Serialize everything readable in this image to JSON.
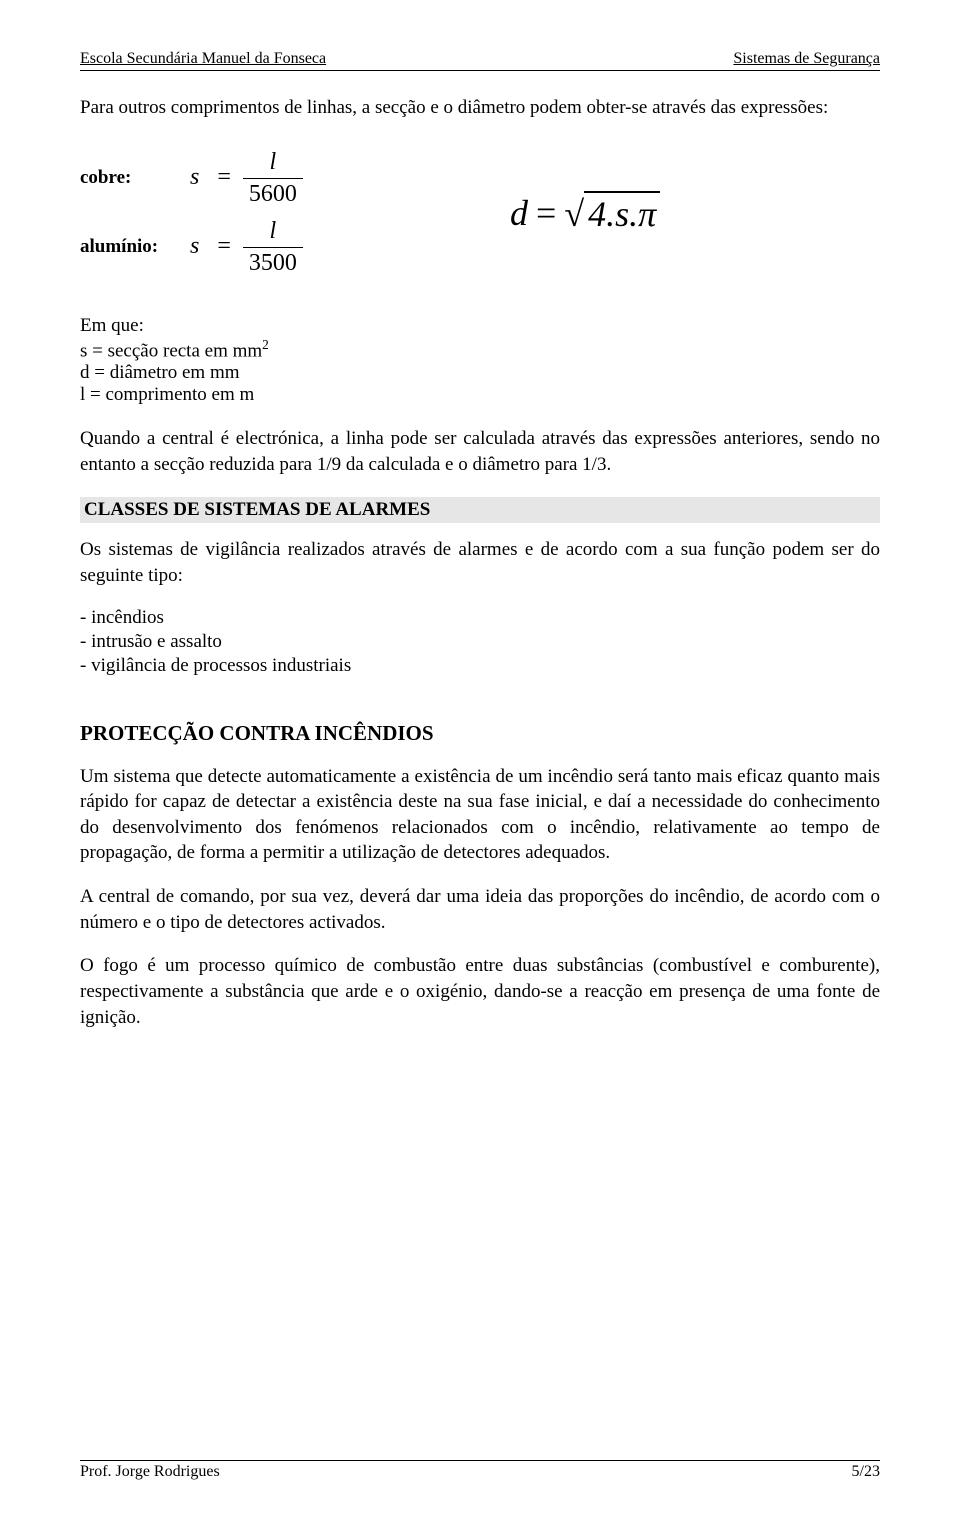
{
  "header": {
    "left": "Escola Secundária Manuel da Fonseca",
    "right": "Sistemas de Segurança"
  },
  "intro": {
    "text": "Para outros comprimentos de linhas, a secção e o diâmetro podem obter-se através das expressões:"
  },
  "formulas": {
    "cobre_label": "cobre:",
    "cobre_lhs": "s",
    "cobre_num": "l",
    "cobre_den": "5600",
    "aluminio_label": "alumínio:",
    "aluminio_lhs": "s",
    "aluminio_num": "l",
    "aluminio_den": "3500",
    "d_lhs": "d",
    "d_equals": "=",
    "d_radicand": "4.s.π"
  },
  "definitions": {
    "intro": "Em que:",
    "line1_a": "s = secção recta em mm",
    "line1_sup": "2",
    "line2": "d = diâmetro em mm",
    "line3": "l = comprimento em m"
  },
  "paragraph_central": "Quando a central é electrónica, a linha pode ser calculada através das expressões anteriores, sendo no entanto a secção reduzida para 1/9 da calculada e o diâmetro para 1/3.",
  "section_classes": {
    "heading": "CLASSES DE SISTEMAS DE ALARMES",
    "text": "Os sistemas de vigilância realizados através de alarmes e de acordo com a sua função podem ser do seguinte tipo:",
    "items": [
      "- incêndios",
      "- intrusão e assalto",
      "- vigilância de processos industriais"
    ]
  },
  "section_fire": {
    "heading": "PROTECÇÃO CONTRA INCÊNDIOS",
    "p1": "Um sistema que detecte automaticamente a existência de um incêndio será tanto mais eficaz quanto mais rápido for capaz de detectar a existência deste na sua fase inicial, e daí a necessidade do conhecimento do desenvolvimento dos fenómenos relacionados com o incêndio, relativamente ao tempo de propagação, de forma a permitir a utilização de detectores adequados.",
    "p2": "A central de comando, por sua vez, deverá dar uma ideia das proporções do incêndio, de acordo com o número e o tipo de detectores activados.",
    "p3": "O fogo é um processo químico de combustão entre duas substâncias (combustível e comburente), respectivamente a substância que arde e o oxigénio, dando-se a reacção em presença de uma fonte de ignição."
  },
  "footer": {
    "left": "Prof. Jorge Rodrigues",
    "right": "5/23"
  }
}
